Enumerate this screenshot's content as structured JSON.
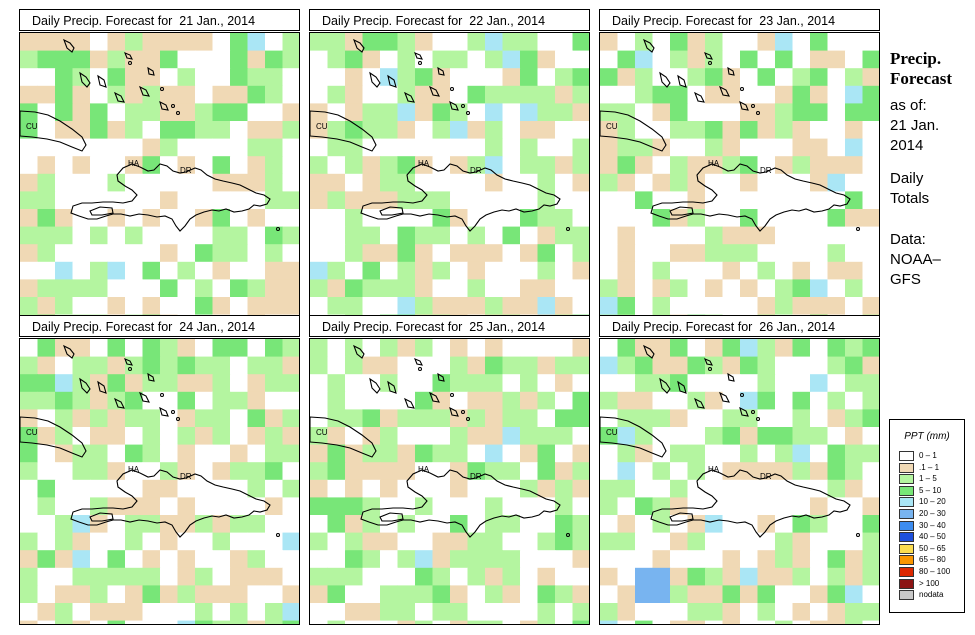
{
  "panels": [
    {
      "title": "Daily Precip. Forecast for  21 Jan., 2014",
      "seed": 11,
      "base": 0.5,
      "green": 0.45
    },
    {
      "title": "Daily Precip. Forecast for  22 Jan., 2014",
      "seed": 23,
      "base": 0.55,
      "green": 0.55
    },
    {
      "title": "Daily Precip. Forecast for  23 Jan., 2014",
      "seed": 37,
      "base": 0.6,
      "green": 0.35
    },
    {
      "title": "Daily Precip. Forecast for  24 Jan., 2014",
      "seed": 41,
      "base": 0.6,
      "green": 0.6
    },
    {
      "title": "Daily Precip. Forecast for  25 Jan., 2014",
      "seed": 53,
      "base": 0.55,
      "green": 0.55
    },
    {
      "title": "Daily Precip. Forecast for  26 Jan., 2014",
      "seed": 67,
      "base": 0.55,
      "green": 0.5
    }
  ],
  "map_labels": {
    "cuba": "CU",
    "haiti": "HA",
    "dr": "DR"
  },
  "sidebar": {
    "title_line1": "Precip.",
    "title_line2": "Forecast",
    "asof_label": "as of:",
    "date_line1": "21 Jan.",
    "date_line2": "2014",
    "daily_line1": "Daily",
    "daily_line2": "Totals",
    "data_line1": "Data:",
    "data_line2": "NOAA–",
    "data_line3": "GFS"
  },
  "legend": {
    "title": "PPT (mm)",
    "items": [
      {
        "label": "0 – 1",
        "color": "#ffffff"
      },
      {
        "label": ".1 – 1",
        "color": "#f0d9b5"
      },
      {
        "label": "1 – 5",
        "color": "#b4f5a0"
      },
      {
        "label": "5 – 10",
        "color": "#78e678"
      },
      {
        "label": "10 – 20",
        "color": "#aae6f5"
      },
      {
        "label": "20 – 30",
        "color": "#78b4f0"
      },
      {
        "label": "30 – 40",
        "color": "#3c8cf0"
      },
      {
        "label": "40 – 50",
        "color": "#1e50dc"
      },
      {
        "label": "50 – 65",
        "color": "#fadc50"
      },
      {
        "label": "65 – 80",
        "color": "#fa9600"
      },
      {
        "label": "80 – 100",
        "color": "#dc2800"
      },
      {
        "label": "> 100",
        "color": "#8c1414"
      },
      {
        "label": "nodata",
        "color": "#c8c8c8"
      }
    ]
  }
}
